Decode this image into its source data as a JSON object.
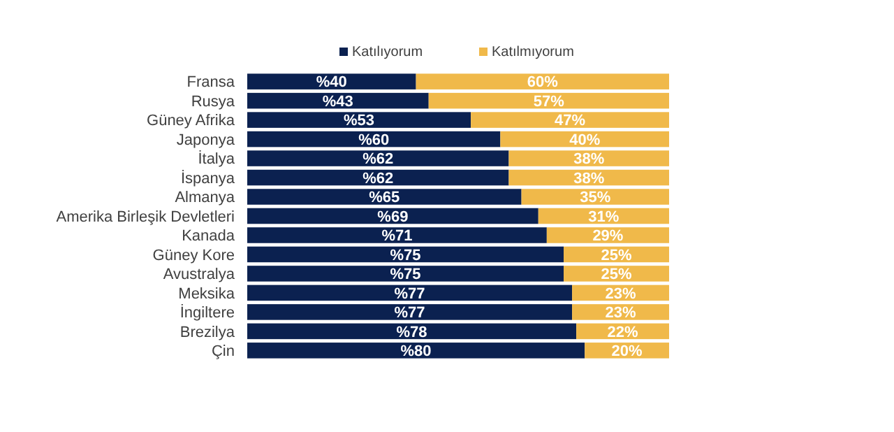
{
  "chart_data": {
    "type": "bar",
    "orientation": "horizontal",
    "stacked": true,
    "legend": "top",
    "tick_labels": "y",
    "xlim": [
      0,
      100
    ],
    "categories": [
      "Fransa",
      "Rusya",
      "Güney Afrika",
      "Japonya",
      "İtalya",
      "İspanya",
      "Almanya",
      "Amerika Birleşik Devletleri",
      "Kanada",
      "Güney Kore",
      "Avustralya",
      "Meksika",
      "İngiltere",
      "Brezilya",
      "Çin"
    ],
    "series": [
      {
        "name": "Katılıyorum",
        "color": "#0b2150",
        "values": [
          40,
          43,
          53,
          60,
          62,
          62,
          65,
          69,
          71,
          75,
          75,
          77,
          77,
          78,
          80
        ],
        "value_labels": [
          "%40",
          "%43",
          "%53",
          "%60",
          "%62",
          "%62",
          "%65",
          "%69",
          "%71",
          "%75",
          "%75",
          "%77",
          "%77",
          "%78",
          "%80"
        ]
      },
      {
        "name": "Katılmıyorum",
        "color": "#f0b94a",
        "values": [
          60,
          57,
          47,
          40,
          38,
          38,
          35,
          31,
          29,
          25,
          25,
          23,
          23,
          22,
          20
        ],
        "value_labels": [
          "60%",
          "57%",
          "47%",
          "40%",
          "38%",
          "38%",
          "35%",
          "31%",
          "29%",
          "25%",
          "25%",
          "23%",
          "23%",
          "22%",
          "20%"
        ]
      }
    ]
  }
}
